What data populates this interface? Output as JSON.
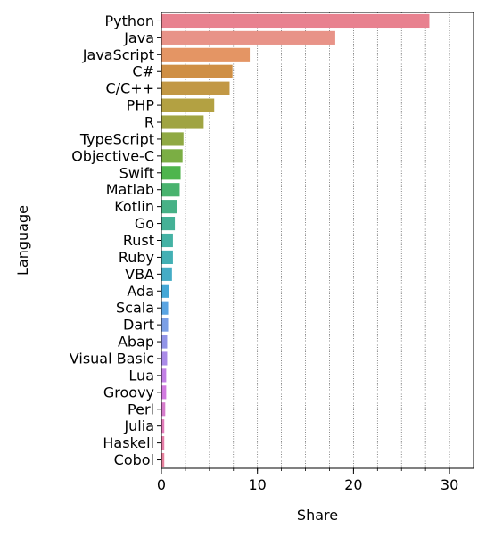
{
  "chart_data": {
    "type": "bar",
    "orientation": "horizontal",
    "title": "",
    "xlabel": "Share",
    "ylabel": "Language",
    "xlim": [
      0,
      32.5
    ],
    "xticks": [
      0,
      10,
      20,
      30
    ],
    "minor_grid_step": 2.5,
    "grid": "x-minor-dotted",
    "categories": [
      "Python",
      "Java",
      "JavaScript",
      "C#",
      "C/C++",
      "PHP",
      "R",
      "TypeScript",
      "Objective-C",
      "Swift",
      "Matlab",
      "Kotlin",
      "Go",
      "Rust",
      "Ruby",
      "VBA",
      "Ada",
      "Scala",
      "Dart",
      "Abap",
      "Visual Basic",
      "Lua",
      "Groovy",
      "Perl",
      "Julia",
      "Haskell",
      "Cobol"
    ],
    "values": [
      27.9,
      18.1,
      9.2,
      7.4,
      7.1,
      5.5,
      4.4,
      2.3,
      2.2,
      2.0,
      1.9,
      1.6,
      1.4,
      1.2,
      1.2,
      1.1,
      0.8,
      0.7,
      0.7,
      0.6,
      0.6,
      0.5,
      0.5,
      0.4,
      0.3,
      0.3,
      0.3
    ],
    "colors": [
      "#e8818f",
      "#e89388",
      "#e49564",
      "#cf8f45",
      "#c29845",
      "#b3a142",
      "#a0a442",
      "#8fa943",
      "#7bae44",
      "#4eb54d",
      "#49b36e",
      "#47b186",
      "#44b196",
      "#44b2a4",
      "#43b0b4",
      "#44acc5",
      "#45a8d7",
      "#5ba5e2",
      "#7b9fe6",
      "#9295e8",
      "#aa8be8",
      "#c280e5",
      "#d27be0",
      "#d57ccb",
      "#e37cba",
      "#e77ea9",
      "#e6809c"
    ]
  }
}
